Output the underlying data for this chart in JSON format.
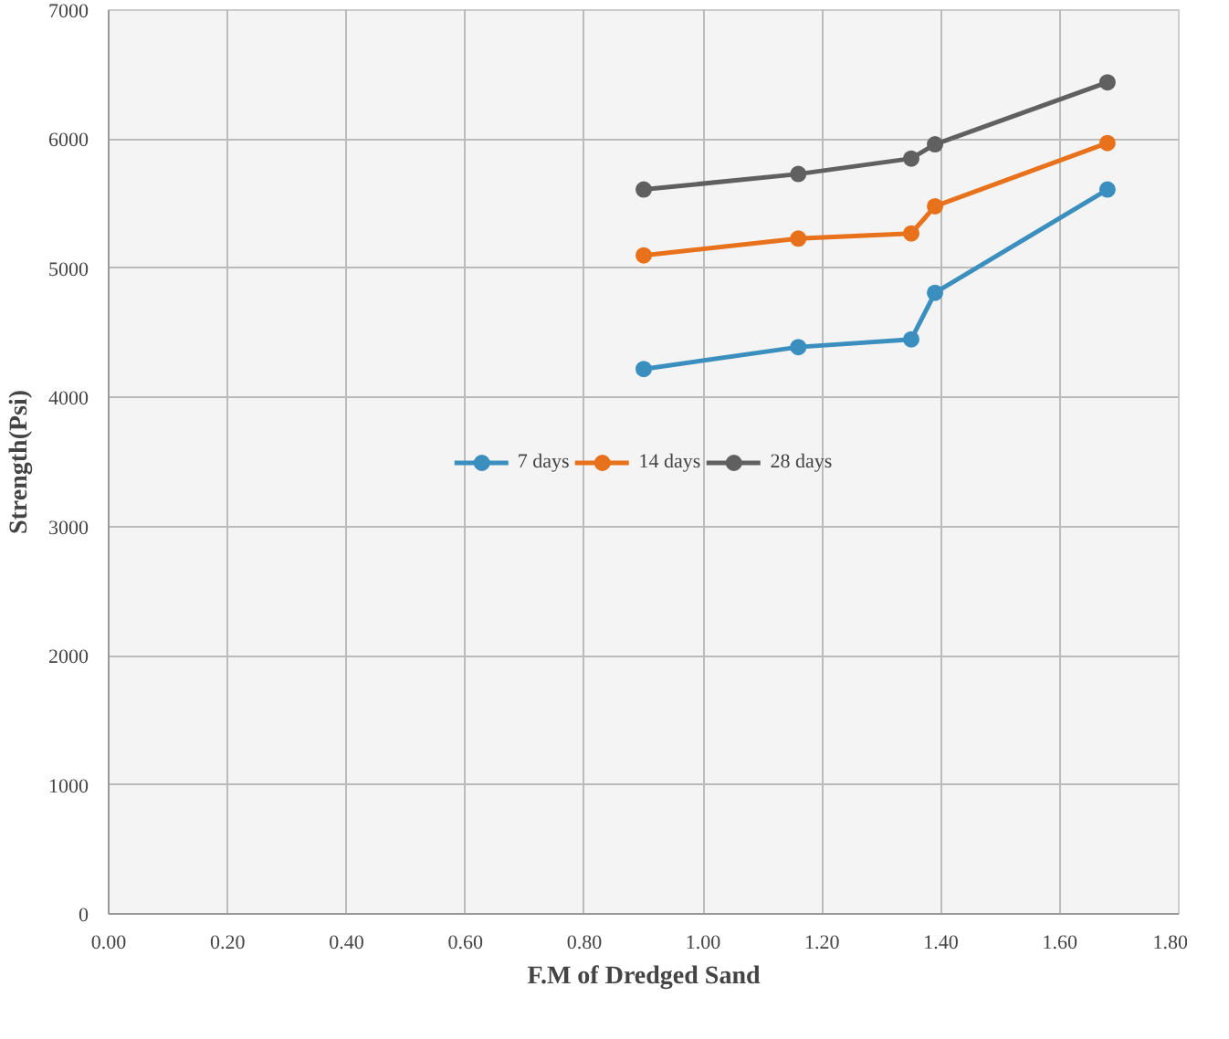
{
  "chart_data": {
    "type": "line",
    "xlabel": "F.M of Dredged Sand",
    "ylabel": "Strength(Psi)",
    "x": [
      0.9,
      1.16,
      1.35,
      1.39,
      1.68
    ],
    "series": [
      {
        "name": "7 days",
        "color": "#3a8fbf",
        "values": [
          4220,
          4390,
          4450,
          4810,
          5610
        ]
      },
      {
        "name": "14 days",
        "color": "#e8711c",
        "values": [
          5100,
          5230,
          5270,
          5480,
          5970
        ]
      },
      {
        "name": "28 days",
        "color": "#606060",
        "values": [
          5610,
          5730,
          5850,
          5960,
          6440
        ]
      }
    ],
    "xlim": [
      0,
      1.8
    ],
    "xticks": [
      {
        "value": 0,
        "label": "0.00"
      },
      {
        "value": 0.2,
        "label": "0.20"
      },
      {
        "value": 0.4,
        "label": "0.40"
      },
      {
        "value": 0.6,
        "label": "0.60"
      },
      {
        "value": 0.8,
        "label": "0.80"
      },
      {
        "value": 1.0,
        "label": "1.00"
      },
      {
        "value": 1.2,
        "label": "1.20"
      },
      {
        "value": 1.4,
        "label": "1.40"
      },
      {
        "value": 1.6,
        "label": "1.60"
      },
      {
        "value": 1.8,
        "label": "1.80"
      }
    ],
    "ylim": [
      0,
      7000
    ],
    "yticks": [
      0,
      1000,
      2000,
      3000,
      4000,
      5000,
      6000,
      7000
    ],
    "grid": true,
    "legend": "center",
    "marker": "circle",
    "line_style": "solid"
  }
}
